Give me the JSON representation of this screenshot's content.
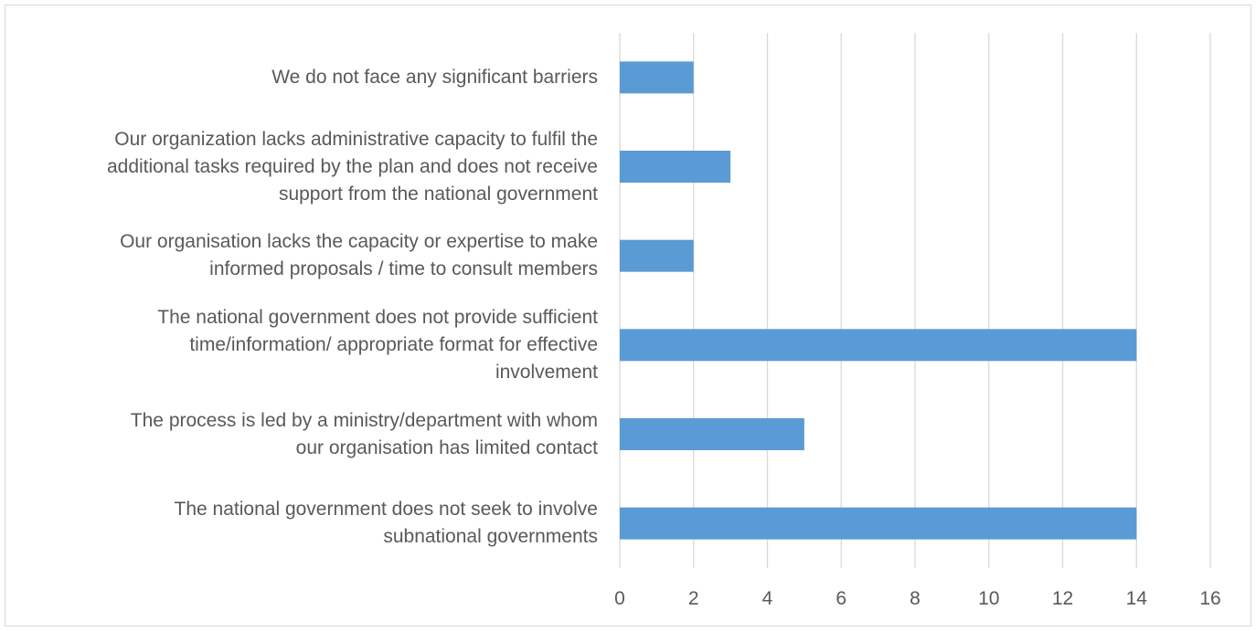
{
  "chart_data": {
    "type": "bar",
    "orientation": "horizontal",
    "categories": [
      "We do not face any significant barriers",
      "Our organization lacks administrative capacity to fulfil the additional tasks required by the plan and does not receive support from the national government",
      "Our organisation lacks the capacity or expertise to make informed proposals / time to consult members",
      "The national government does not provide sufficient time/information/ appropriate format for effective involvement",
      "The process is led by a ministry/department with whom our organisation has limited contact",
      "The national government does not seek to involve subnational governments"
    ],
    "category_lines": [
      [
        "We do not face any significant barriers"
      ],
      [
        "Our organization lacks administrative capacity to fulfil the",
        "additional tasks required by the plan and does not receive",
        "support from the national government"
      ],
      [
        "Our organisation lacks the capacity or expertise to make",
        "informed proposals / time to consult members"
      ],
      [
        "The national government does not provide sufficient",
        "time/information/ appropriate format for effective",
        "involvement"
      ],
      [
        "The process is led by a ministry/department with whom",
        "our organisation has limited contact"
      ],
      [
        "The national government does not seek to involve",
        "subnational governments"
      ]
    ],
    "values": [
      2,
      3,
      2,
      14,
      5,
      14
    ],
    "x_ticks": [
      "0",
      "2",
      "4",
      "6",
      "8",
      "10",
      "12",
      "14",
      "16"
    ],
    "xlim": [
      0,
      16
    ],
    "grid": "vertical",
    "bar_color": "#5b9bd5",
    "grid_color": "#d9d9d9",
    "label_color": "#595959"
  }
}
